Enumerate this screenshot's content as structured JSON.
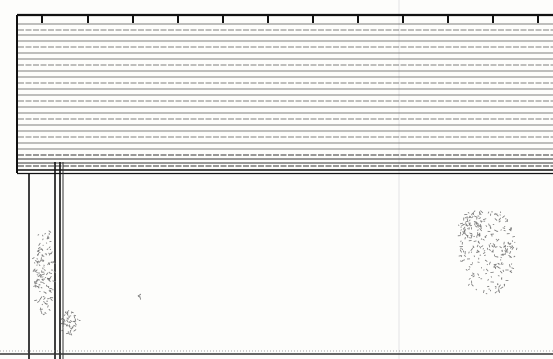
{
  "drawing": {
    "paper_color": "#fdfdfb",
    "ink_color": "#111111",
    "line_color": "#555555",
    "plant_color": "#777777",
    "elements": [
      "fascia-beam",
      "roof-lines",
      "rafter-ticks",
      "post",
      "shrub-hatching",
      "ground-line",
      "sheet-fold"
    ]
  }
}
